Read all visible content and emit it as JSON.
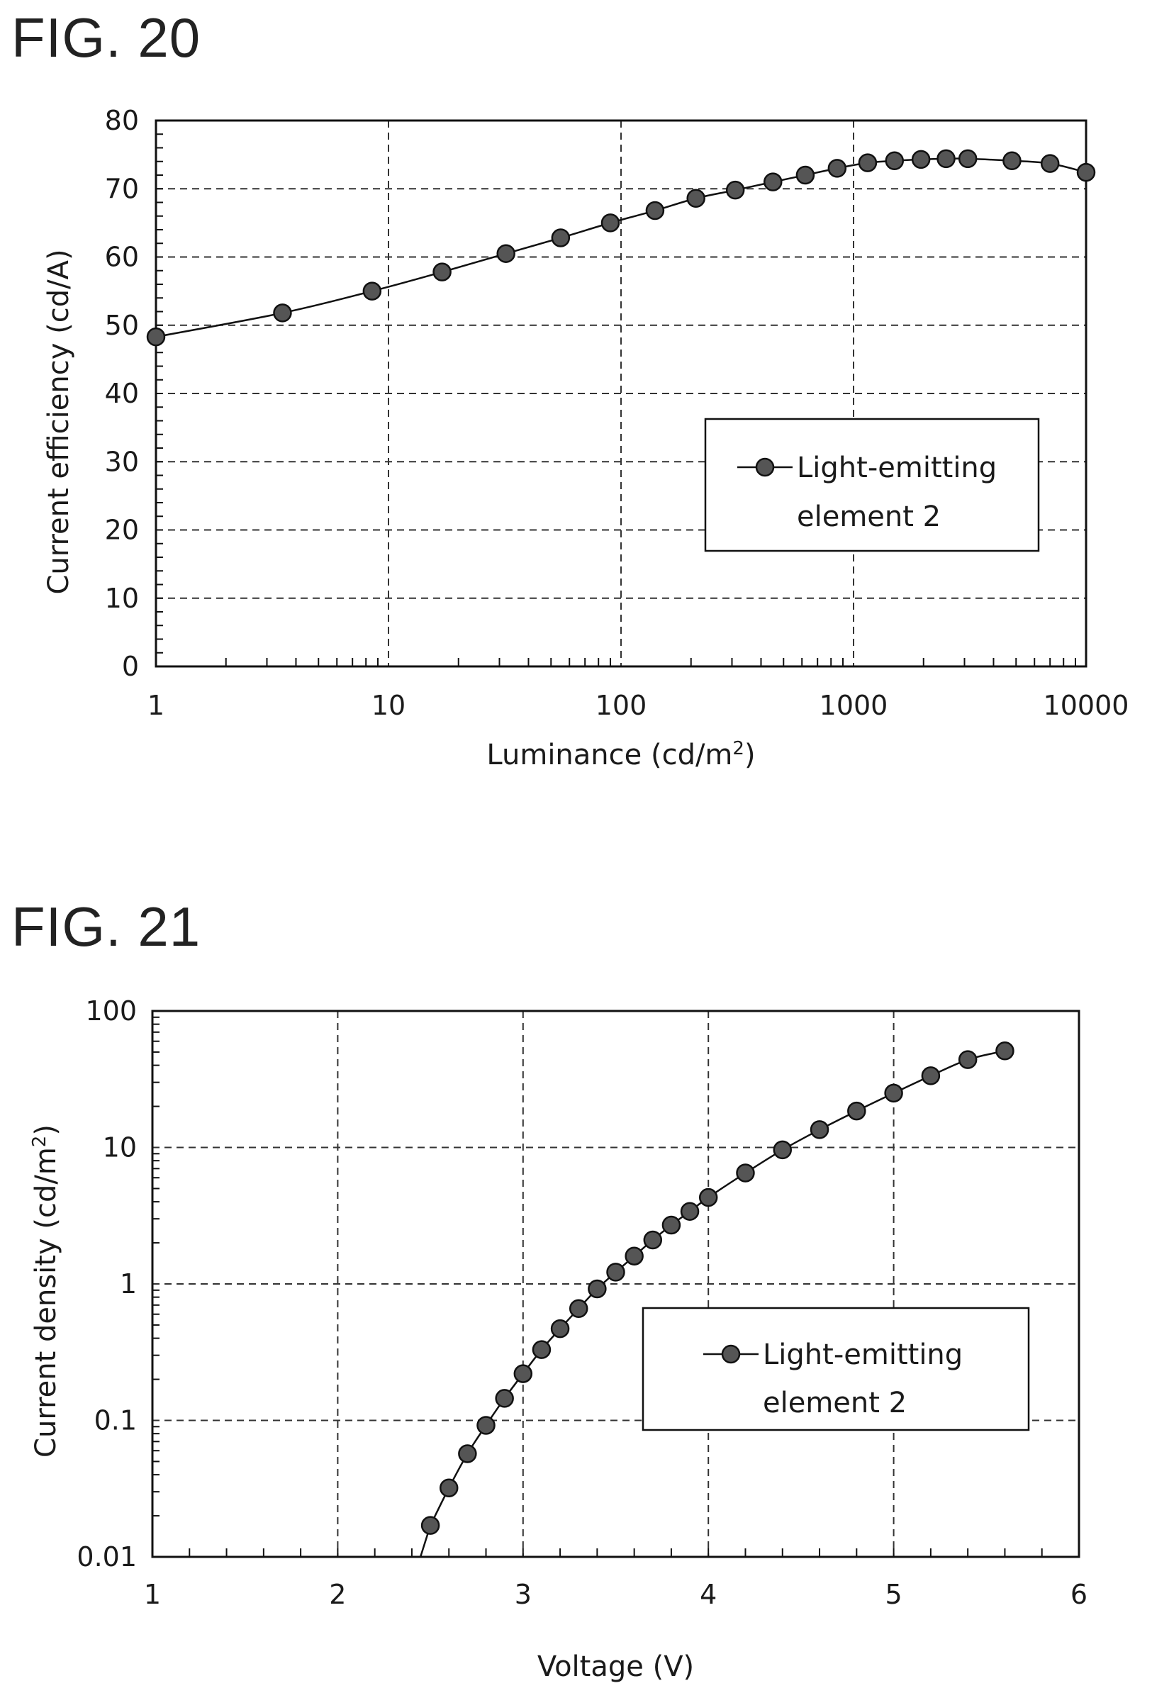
{
  "figures": {
    "fig20": {
      "title": "FIG. 20"
    },
    "fig21": {
      "title": "FIG. 21"
    }
  },
  "chart_data": [
    {
      "type": "line",
      "title": "FIG. 20",
      "xlabel": "Luminance (cd/m²)",
      "ylabel": "Current efficiency (cd/A)",
      "xscale": "log",
      "xlim": [
        1,
        10000
      ],
      "ylim": [
        0,
        80
      ],
      "xticks": [
        "1",
        "10",
        "100",
        "1000",
        "10000"
      ],
      "yticks": [
        "0",
        "10",
        "20",
        "30",
        "40",
        "50",
        "60",
        "70",
        "80"
      ],
      "grid": true,
      "legend_position": "right",
      "series": [
        {
          "name": "Light-emitting element 2",
          "legend_lines": [
            "Light-emitting",
            "element 2"
          ],
          "x": [
            1.0,
            3.5,
            8.5,
            17,
            32,
            55,
            90,
            140,
            210,
            310,
            450,
            620,
            850,
            1150,
            1500,
            1950,
            2500,
            3100,
            4800,
            7000,
            10000
          ],
          "y": [
            48.3,
            51.8,
            55.0,
            57.8,
            60.5,
            62.8,
            65.0,
            66.8,
            68.6,
            69.8,
            71.0,
            72.0,
            73.0,
            73.8,
            74.1,
            74.3,
            74.4,
            74.4,
            74.1,
            73.7,
            72.4
          ]
        }
      ]
    },
    {
      "type": "line",
      "title": "FIG. 21",
      "xlabel": "Voltage (V)",
      "ylabel": "Current density (cd/m²)",
      "yscale": "log",
      "xlim": [
        1,
        6
      ],
      "ylim": [
        0.01,
        100
      ],
      "xticks": [
        "1",
        "2",
        "3",
        "4",
        "5",
        "6"
      ],
      "yticks": [
        "0.01",
        "0.1",
        "1",
        "10",
        "100"
      ],
      "grid": true,
      "legend_position": "right",
      "series": [
        {
          "name": "Light-emitting element 2",
          "legend_lines": [
            "Light-emitting",
            "element 2"
          ],
          "x": [
            2.5,
            2.6,
            2.7,
            2.8,
            2.9,
            3.0,
            3.1,
            3.2,
            3.3,
            3.4,
            3.5,
            3.6,
            3.7,
            3.8,
            3.9,
            4.0,
            4.2,
            4.4,
            4.6,
            4.8,
            5.0,
            5.2,
            5.4,
            5.6
          ],
          "y": [
            0.017,
            0.032,
            0.057,
            0.092,
            0.145,
            0.22,
            0.33,
            0.47,
            0.66,
            0.92,
            1.22,
            1.6,
            2.1,
            2.7,
            3.4,
            4.3,
            6.5,
            9.6,
            13.5,
            18.5,
            25.0,
            33.5,
            44.0,
            51.0
          ]
        }
      ]
    }
  ]
}
